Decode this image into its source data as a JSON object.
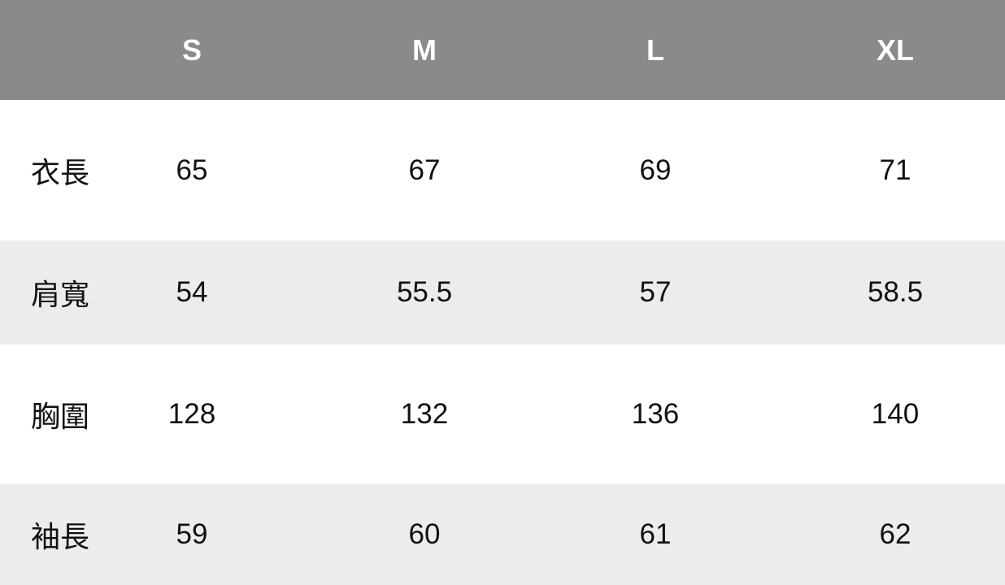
{
  "colors": {
    "header_bg": "#8a8a8a",
    "header_text": "#ffffff",
    "row_alt_bg": "#ececec",
    "row_bg": "#ffffff"
  },
  "table": {
    "columns": [
      "S",
      "M",
      "L",
      "XL"
    ],
    "rows": [
      {
        "label": "衣長",
        "values": [
          "65",
          "67",
          "69",
          "71"
        ]
      },
      {
        "label": "肩寬",
        "values": [
          "54",
          "55.5",
          "57",
          "58.5"
        ]
      },
      {
        "label": "胸圍",
        "values": [
          "128",
          "132",
          "136",
          "140"
        ]
      },
      {
        "label": "袖長",
        "values": [
          "59",
          "60",
          "61",
          "62"
        ]
      }
    ]
  }
}
